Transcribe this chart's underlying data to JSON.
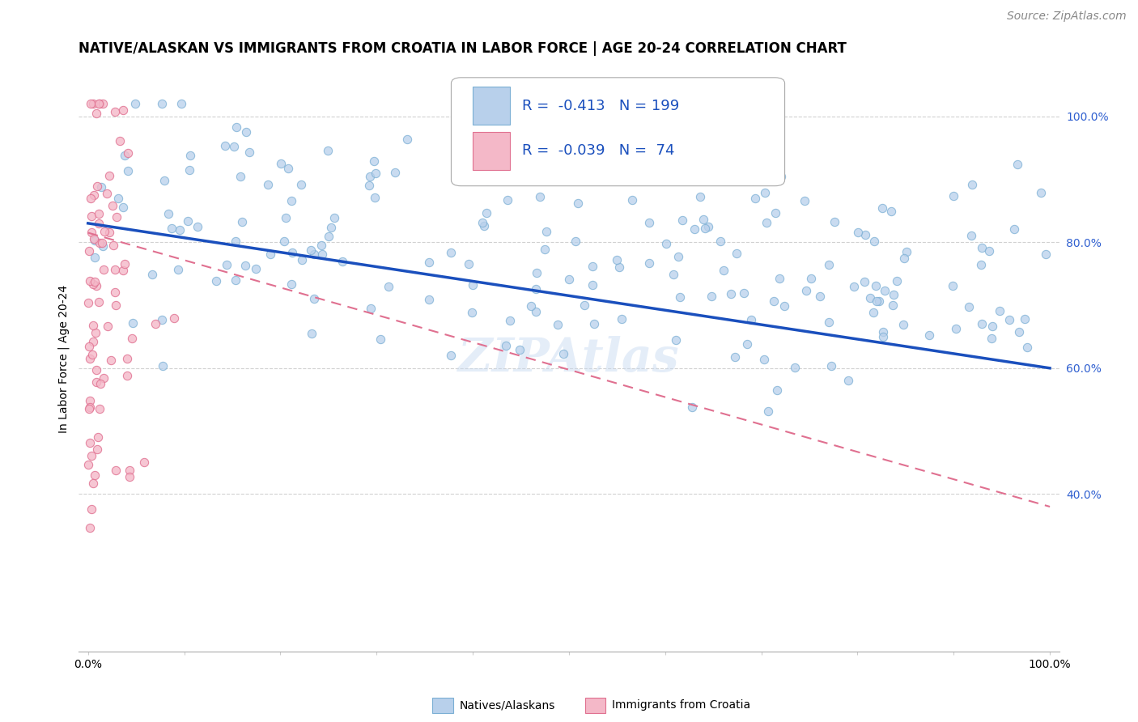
{
  "title": "NATIVE/ALASKAN VS IMMIGRANTS FROM CROATIA IN LABOR FORCE | AGE 20-24 CORRELATION CHART",
  "source": "Source: ZipAtlas.com",
  "ylabel_label": "In Labor Force | Age 20-24",
  "ytick_values": [
    1.0,
    0.8,
    0.6,
    0.4
  ],
  "ylim": [
    0.15,
    1.08
  ],
  "xlim": [
    -0.01,
    1.01
  ],
  "legend": {
    "blue_r": -0.413,
    "pink_r": -0.039,
    "blue_n": 199,
    "pink_n": 74
  },
  "watermark": "ZIPAtlas",
  "background_color": "#ffffff",
  "grid_color": "#cccccc",
  "blue_scatter_color": "#b8d0eb",
  "blue_scatter_edge": "#7bafd4",
  "pink_scatter_color": "#f4b8c8",
  "pink_scatter_edge": "#e07090",
  "blue_line_color": "#1a4fbd",
  "pink_line_color": "#e07090",
  "blue_dot_size": 55,
  "pink_dot_size": 55,
  "title_fontsize": 12,
  "axis_label_fontsize": 10,
  "tick_fontsize": 10,
  "legend_fontsize": 13,
  "source_fontsize": 10,
  "watermark_fontsize": 42,
  "seed": 99,
  "blue_line_start_x": 0.0,
  "blue_line_end_x": 1.0,
  "blue_line_start_y": 0.83,
  "blue_line_end_y": 0.6,
  "pink_line_start_x": 0.0,
  "pink_line_end_x": 1.0,
  "pink_line_start_y": 0.815,
  "pink_line_end_y": 0.38
}
